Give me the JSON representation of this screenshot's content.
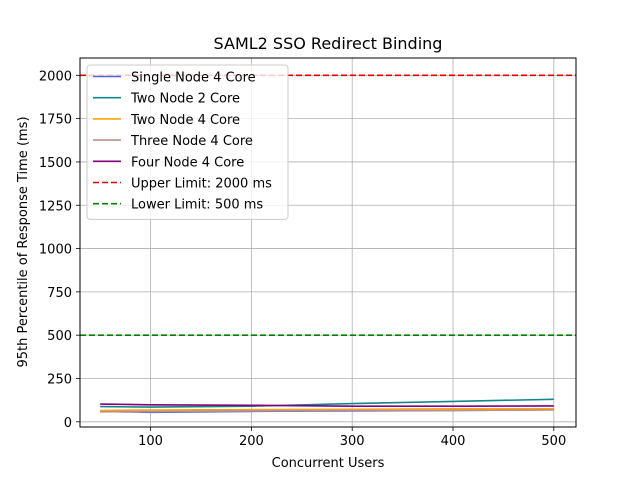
{
  "chart_data": {
    "type": "line",
    "title": "SAML2 SSO Redirect Binding",
    "xlabel": "Concurrent Users",
    "ylabel": "95th Percentile of Response Time (ms)",
    "x": [
      50,
      100,
      200,
      300,
      400,
      500
    ],
    "xlim": [
      30,
      522
    ],
    "ylim": [
      -30,
      2100
    ],
    "xticks": [
      100,
      200,
      300,
      400,
      500
    ],
    "yticks": [
      0,
      250,
      500,
      750,
      1000,
      1250,
      1500,
      1750,
      2000
    ],
    "grid": true,
    "legend_position": "top-left",
    "series": [
      {
        "name": "Single Node 4 Core",
        "color": "#5566dd",
        "dash": false,
        "values": [
          60,
          55,
          60,
          63,
          65,
          70
        ]
      },
      {
        "name": "Two Node 2 Core",
        "color": "#118888",
        "dash": false,
        "values": [
          88,
          85,
          90,
          105,
          118,
          130
        ]
      },
      {
        "name": "Two Node 4 Core",
        "color": "#ffa500",
        "dash": false,
        "values": [
          65,
          68,
          70,
          72,
          75,
          75
        ]
      },
      {
        "name": "Three Node 4 Core",
        "color": "#bc8f8f",
        "dash": false,
        "values": [
          58,
          60,
          63,
          65,
          65,
          68
        ]
      },
      {
        "name": "Four Node 4 Core",
        "color": "#800080",
        "dash": false,
        "values": [
          102,
          98,
          95,
          90,
          90,
          92
        ]
      }
    ],
    "reference_lines": [
      {
        "name": "Upper Limit: 2000 ms",
        "value": 2000,
        "color": "#dd0000"
      },
      {
        "name": "Lower Limit: 500 ms",
        "value": 500,
        "color": "#008000"
      }
    ]
  }
}
